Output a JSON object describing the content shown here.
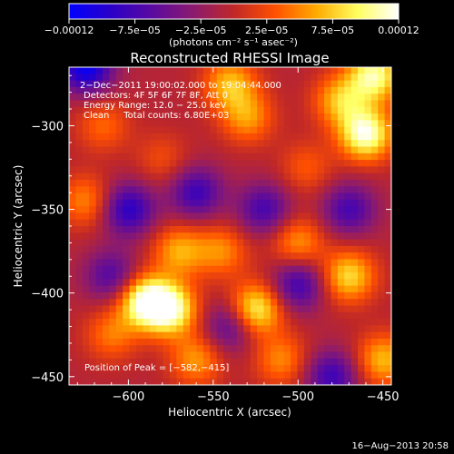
{
  "chart_data": {
    "type": "heatmap",
    "title": "Reconstructed RHESSI Image",
    "xlabel": "Heliocentric X (arcsec)",
    "ylabel": "Heliocentric Y (arcsec)",
    "xlim": [
      -635,
      -445
    ],
    "ylim": [
      -455,
      -265
    ],
    "xticks": [
      -600,
      -550,
      -500,
      -450
    ],
    "yticks": [
      -300,
      -350,
      -400,
      -450
    ],
    "xtick_labels": [
      "−600",
      "−550",
      "−500",
      "−450"
    ],
    "ytick_labels": [
      "−300",
      "−350",
      "−400",
      "−450"
    ],
    "colorbar": {
      "range": [
        -0.00012,
        0.00012
      ],
      "tick_labels": [
        "−0.00012",
        "−7.5e−05",
        "−2.5e−05",
        "2.5e−05",
        "7.5e−05",
        "0.00012"
      ],
      "unit_label": "(photons cm⁻² s⁻¹ asec⁻²)",
      "colors": [
        "#0000ff",
        "#2a00c8",
        "#5a0aa0",
        "#8a1a70",
        "#c02828",
        "#ff5000",
        "#ffaa00",
        "#ffff60",
        "#ffffff"
      ]
    },
    "annotations": [
      "2−Dec−2011 19:00:02.000 to 19:04:44.000",
      "Detectors: 4F 5F 6F 7F 8F, Att 0",
      "Energy Range: 12.0 − 25.0 keV",
      "Clean     Total counts: 6.80E+03"
    ],
    "peak_label": "Position of Peak = [−582,−415]",
    "peak": [
      -582,
      -415
    ],
    "sources": [
      {
        "x": -590,
        "y": -405,
        "v": 1.0
      },
      {
        "x": -575,
        "y": -410,
        "v": 0.9
      },
      {
        "x": -525,
        "y": -410,
        "v": 0.85
      },
      {
        "x": -460,
        "y": -305,
        "v": 1.0
      },
      {
        "x": -455,
        "y": -270,
        "v": 0.9
      },
      {
        "x": -475,
        "y": -285,
        "v": 0.6
      },
      {
        "x": -540,
        "y": -275,
        "v": 0.6
      },
      {
        "x": -530,
        "y": -295,
        "v": 0.5
      },
      {
        "x": -470,
        "y": -390,
        "v": 0.7
      },
      {
        "x": -450,
        "y": -440,
        "v": 0.6
      },
      {
        "x": -625,
        "y": -345,
        "v": 0.45
      },
      {
        "x": -570,
        "y": -375,
        "v": 0.55
      },
      {
        "x": -545,
        "y": -375,
        "v": 0.45
      },
      {
        "x": -500,
        "y": -370,
        "v": 0.5
      },
      {
        "x": -510,
        "y": -440,
        "v": 0.45
      },
      {
        "x": -560,
        "y": -440,
        "v": 0.5
      },
      {
        "x": -610,
        "y": -425,
        "v": 0.4
      },
      {
        "x": -615,
        "y": -300,
        "v": 0.35
      },
      {
        "x": -580,
        "y": -320,
        "v": 0.25
      },
      {
        "x": -495,
        "y": -325,
        "v": 0.3
      },
      {
        "x": -600,
        "y": -350,
        "v": -0.7
      },
      {
        "x": -560,
        "y": -340,
        "v": -0.6
      },
      {
        "x": -520,
        "y": -350,
        "v": -0.55
      },
      {
        "x": -625,
        "y": -265,
        "v": -0.9
      },
      {
        "x": -500,
        "y": -395,
        "v": -0.6
      },
      {
        "x": -540,
        "y": -420,
        "v": -0.5
      },
      {
        "x": -610,
        "y": -390,
        "v": -0.5
      },
      {
        "x": -470,
        "y": -350,
        "v": -0.55
      },
      {
        "x": -480,
        "y": -450,
        "v": -0.6
      }
    ]
  },
  "footer": {
    "timestamp": "16−Aug−2013 20:58"
  }
}
